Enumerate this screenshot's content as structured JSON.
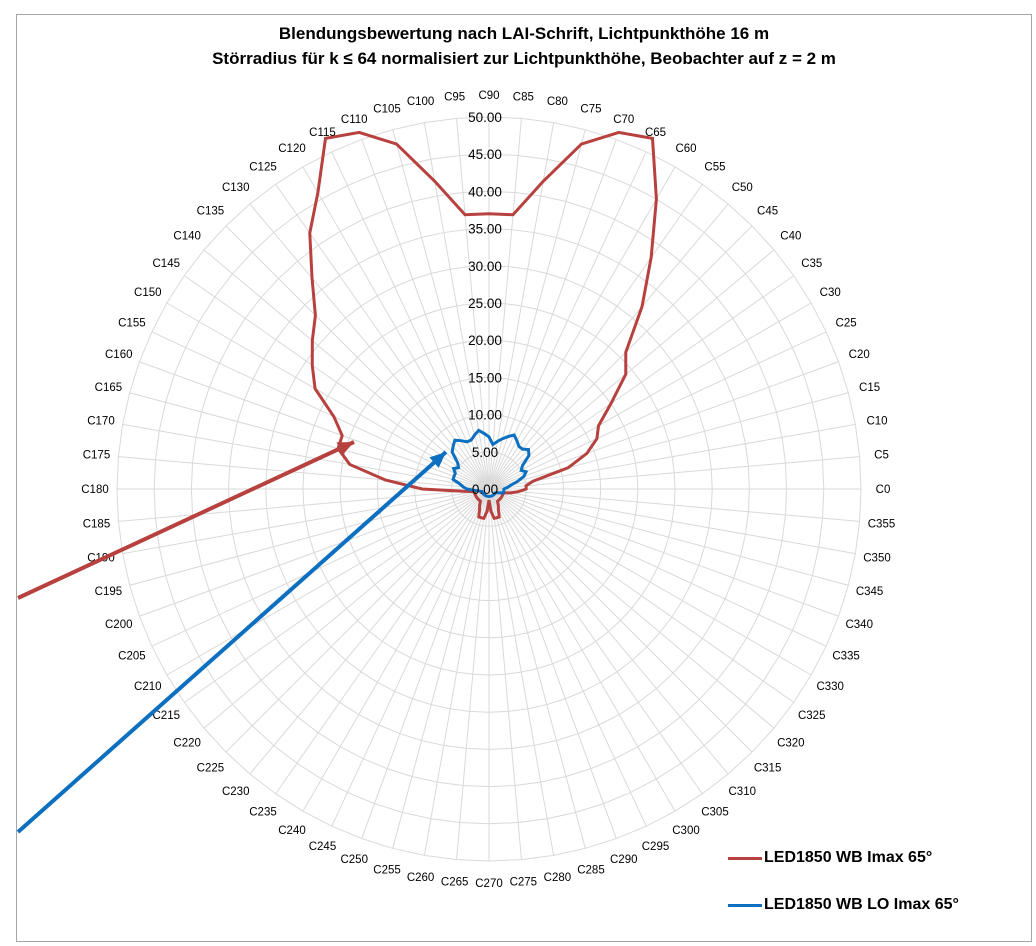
{
  "chart_data": {
    "type": "radar",
    "title": "Blendungsbewertung nach LAI-Schrift, Lichtpunkthöhe 16 m",
    "subtitle": "Störradius für k ≤ 64 normalisiert zur Lichtpunkthöhe, Beobachter auf z = 2 m",
    "categories": [
      "C0",
      "C5",
      "C10",
      "C15",
      "C20",
      "C25",
      "C30",
      "C35",
      "C40",
      "C45",
      "C50",
      "C55",
      "C60",
      "C65",
      "C70",
      "C75",
      "C80",
      "C85",
      "C90",
      "C95",
      "C100",
      "C105",
      "C110",
      "C115",
      "C120",
      "C125",
      "C130",
      "C135",
      "C140",
      "C145",
      "C150",
      "C155",
      "C160",
      "C165",
      "C170",
      "C175",
      "C180",
      "C185",
      "C190",
      "C195",
      "C200",
      "C205",
      "C210",
      "C215",
      "C220",
      "C225",
      "C230",
      "C235",
      "C240",
      "C245",
      "C250",
      "C255",
      "C260",
      "C265",
      "C270",
      "C275",
      "C280",
      "C285",
      "C290",
      "C295",
      "C300",
      "C305",
      "C310",
      "C315",
      "C320",
      "C325",
      "C330",
      "C335",
      "C340",
      "C345",
      "C350",
      "C355"
    ],
    "radial_ticks": [
      "0.00",
      "5.00",
      "10.00",
      "15.00",
      "20.00",
      "25.00",
      "30.00",
      "35.00",
      "40.00",
      "45.00",
      "50.00"
    ],
    "rlim": [
      0,
      50
    ],
    "series": [
      {
        "name": "LED1850 WB Imax 65°",
        "color": "#b7413e",
        "values": [
          5,
          5,
          6,
          11,
          14,
          16,
          17,
          20,
          24,
          26,
          32,
          38,
          45,
          52,
          51,
          48,
          42,
          37,
          37,
          37,
          42,
          48,
          51,
          52,
          46,
          42,
          37,
          33,
          31,
          29,
          27,
          23,
          21,
          21,
          19,
          14,
          9,
          3.5,
          2,
          2,
          2,
          2,
          2,
          2,
          2,
          2,
          2,
          2,
          2.5,
          3,
          4,
          4,
          4,
          3,
          1.5,
          3,
          4,
          4,
          4,
          3,
          2.5,
          2,
          2,
          2,
          2,
          2,
          2,
          2,
          2,
          2,
          3,
          4
        ]
      },
      {
        "name": "LED1850 WB LO Imax 65°",
        "color": "#0d6fbf",
        "values": [
          2,
          2.5,
          3,
          4,
          5,
          5.5,
          5,
          5.5,
          7,
          7.5,
          7,
          7,
          7.5,
          8,
          7.5,
          7,
          6.5,
          6,
          7,
          7.5,
          8,
          7.5,
          7,
          7,
          7.5,
          8,
          7.5,
          7,
          5.5,
          5,
          5.5,
          5,
          5,
          5,
          4,
          3.5,
          3,
          2,
          1.5,
          1.2,
          1,
          1,
          1,
          1,
          1,
          1,
          1,
          1,
          1,
          1,
          1,
          1,
          1,
          1,
          1,
          1,
          1,
          1,
          1,
          1,
          1,
          1,
          1,
          1,
          1,
          1,
          1,
          1.2,
          1.5,
          2,
          2,
          2
        ]
      }
    ],
    "legend": "bottom-right",
    "grid": true
  }
}
